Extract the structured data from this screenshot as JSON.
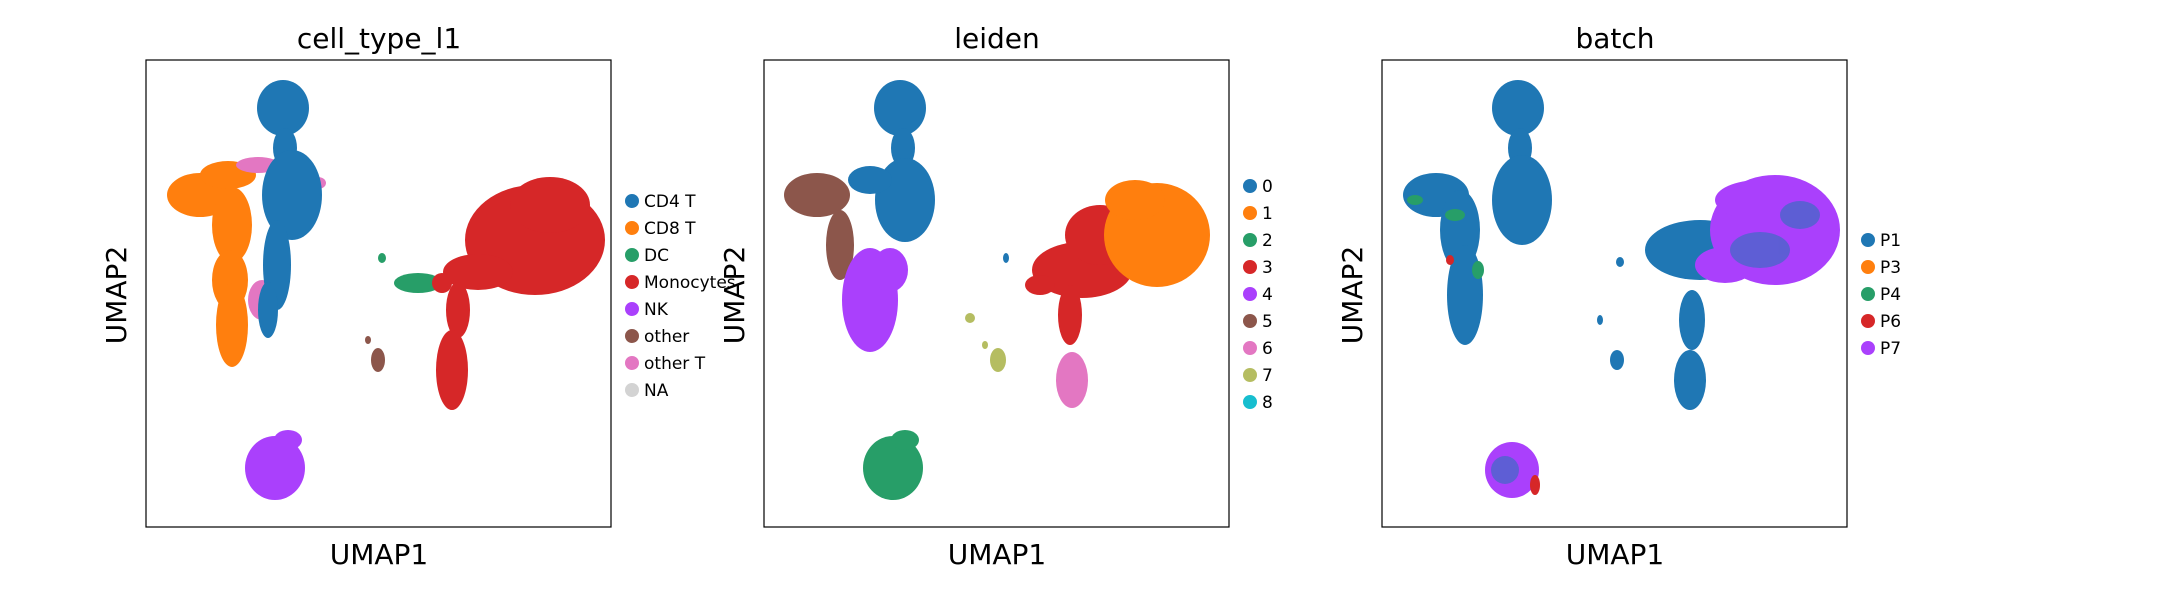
{
  "figure": {
    "panels": [
      {
        "title": "cell_type_l1",
        "xlabel": "UMAP1",
        "ylabel": "UMAP2",
        "legend": [
          {
            "label": "CD4 T",
            "color": "#1f77b4"
          },
          {
            "label": "CD8 T",
            "color": "#ff7f0e"
          },
          {
            "label": "DC",
            "color": "#279e68"
          },
          {
            "label": "Monocytes",
            "color": "#d62728"
          },
          {
            "label": "NK",
            "color": "#aa40fc"
          },
          {
            "label": "other",
            "color": "#8c564b"
          },
          {
            "label": "other T",
            "color": "#e377c2"
          },
          {
            "label": "NA",
            "color": "#d3d3d3"
          }
        ]
      },
      {
        "title": "leiden",
        "xlabel": "UMAP1",
        "ylabel": "UMAP2",
        "legend": [
          {
            "label": "0",
            "color": "#1f77b4"
          },
          {
            "label": "1",
            "color": "#ff7f0e"
          },
          {
            "label": "2",
            "color": "#279e68"
          },
          {
            "label": "3",
            "color": "#d62728"
          },
          {
            "label": "4",
            "color": "#aa40fc"
          },
          {
            "label": "5",
            "color": "#8c564b"
          },
          {
            "label": "6",
            "color": "#e377c2"
          },
          {
            "label": "7",
            "color": "#b5bd61"
          },
          {
            "label": "8",
            "color": "#17becf"
          }
        ]
      },
      {
        "title": "batch",
        "xlabel": "UMAP1",
        "ylabel": "UMAP2",
        "legend": [
          {
            "label": "P1",
            "color": "#1f77b4"
          },
          {
            "label": "P3",
            "color": "#ff7f0e"
          },
          {
            "label": "P4",
            "color": "#279e68"
          },
          {
            "label": "P6",
            "color": "#d62728"
          },
          {
            "label": "P7",
            "color": "#aa40fc"
          }
        ]
      }
    ]
  },
  "chart_data": [
    {
      "type": "scatter",
      "title": "cell_type_l1",
      "xlabel": "UMAP1",
      "ylabel": "UMAP2",
      "legend_position": "right",
      "series": [
        {
          "name": "CD4 T"
        },
        {
          "name": "CD8 T"
        },
        {
          "name": "DC"
        },
        {
          "name": "Monocytes"
        },
        {
          "name": "NK"
        },
        {
          "name": "other"
        },
        {
          "name": "other T"
        },
        {
          "name": "NA"
        }
      ]
    },
    {
      "type": "scatter",
      "title": "leiden",
      "xlabel": "UMAP1",
      "ylabel": "UMAP2",
      "legend_position": "right",
      "series": [
        {
          "name": "0"
        },
        {
          "name": "1"
        },
        {
          "name": "2"
        },
        {
          "name": "3"
        },
        {
          "name": "4"
        },
        {
          "name": "5"
        },
        {
          "name": "6"
        },
        {
          "name": "7"
        },
        {
          "name": "8"
        }
      ]
    },
    {
      "type": "scatter",
      "title": "batch",
      "xlabel": "UMAP1",
      "ylabel": "UMAP2",
      "legend_position": "right",
      "series": [
        {
          "name": "P1"
        },
        {
          "name": "P3"
        },
        {
          "name": "P4"
        },
        {
          "name": "P6"
        },
        {
          "name": "P7"
        }
      ]
    }
  ]
}
